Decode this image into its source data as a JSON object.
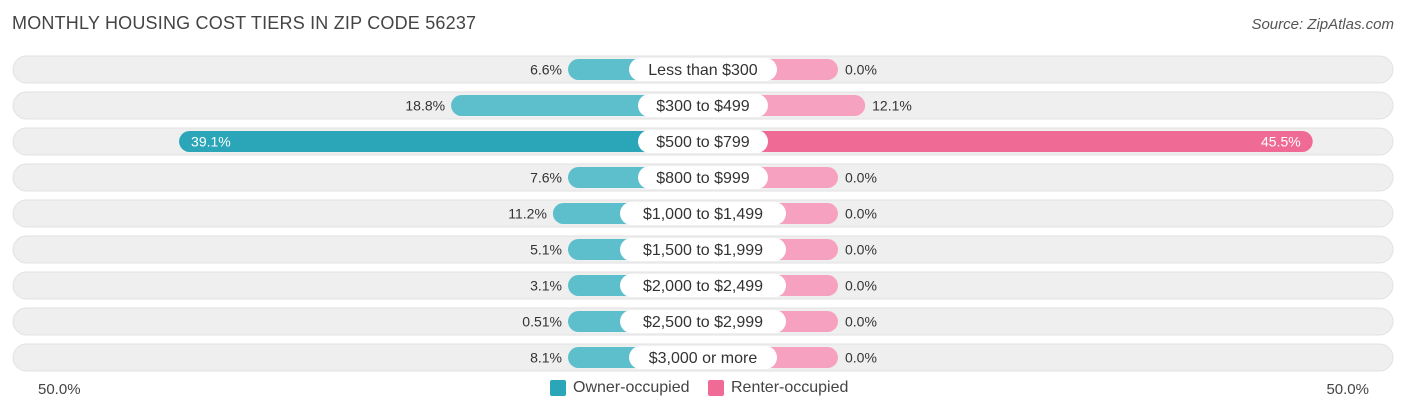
{
  "title": "MONTHLY HOUSING COST TIERS IN ZIP CODE 56237",
  "source": "Source: ZipAtlas.com",
  "colors": {
    "owner": "#5cbfcb",
    "owner_strong": "#2aa6b8",
    "renter": "#f7a1c0",
    "renter_strong": "#f06a96",
    "row_bg": "#efefef"
  },
  "legend": {
    "owner": "Owner-occupied",
    "renter": "Renter-occupied"
  },
  "axis": {
    "left_label": "50.0%",
    "right_label": "50.0%"
  },
  "chart_data": {
    "type": "bar",
    "orientation": "diverging-horizontal",
    "xlim": [
      -50,
      50
    ],
    "categories": [
      "Less than $300",
      "$300 to $499",
      "$500 to $799",
      "$800 to $999",
      "$1,000 to $1,499",
      "$1,500 to $1,999",
      "$2,000 to $2,499",
      "$2,500 to $2,999",
      "$3,000 or more"
    ],
    "series": [
      {
        "name": "Owner-occupied",
        "values": [
          6.6,
          18.8,
          39.1,
          7.6,
          11.2,
          5.1,
          3.1,
          0.51,
          8.1
        ],
        "labels": [
          "6.6%",
          "18.8%",
          "39.1%",
          "7.6%",
          "11.2%",
          "5.1%",
          "3.1%",
          "0.51%",
          "8.1%"
        ]
      },
      {
        "name": "Renter-occupied",
        "values": [
          0.0,
          12.1,
          45.5,
          0.0,
          0.0,
          0.0,
          0.0,
          0.0,
          0.0
        ],
        "labels": [
          "0.0%",
          "12.1%",
          "45.5%",
          "0.0%",
          "0.0%",
          "0.0%",
          "0.0%",
          "0.0%",
          "0.0%"
        ]
      }
    ],
    "legend": "bottom-center"
  }
}
